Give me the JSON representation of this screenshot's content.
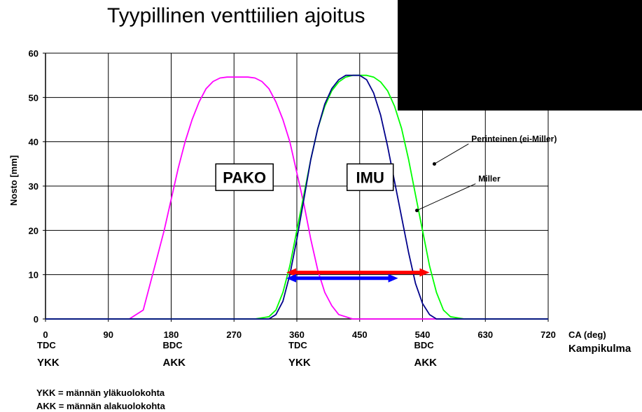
{
  "title": "Tyypillinen venttiilien ajoitus",
  "chart_data": {
    "type": "line",
    "title": "Tyypillinen venttiilien ajoitus",
    "xlabel": "CA (deg)",
    "xlabel2": "Kampikulma",
    "ylabel": "Nosto [mm]",
    "xlim": [
      0,
      720
    ],
    "ylim": [
      0,
      60
    ],
    "xticks": [
      0,
      90,
      180,
      270,
      360,
      450,
      540,
      630,
      720
    ],
    "yticks": [
      0,
      10,
      20,
      30,
      40,
      50,
      60
    ],
    "grid": true,
    "series": [
      {
        "key": "pako",
        "color": "#ff00ff",
        "points": [
          [
            0,
            0
          ],
          [
            120,
            0
          ],
          [
            140,
            2
          ],
          [
            150,
            8
          ],
          [
            160,
            14
          ],
          [
            170,
            20
          ],
          [
            180,
            27
          ],
          [
            190,
            34
          ],
          [
            200,
            40
          ],
          [
            210,
            45
          ],
          [
            220,
            49
          ],
          [
            230,
            52
          ],
          [
            240,
            53.6
          ],
          [
            250,
            54.4
          ],
          [
            260,
            54.6
          ],
          [
            290,
            54.6
          ],
          [
            300,
            54.4
          ],
          [
            310,
            53.6
          ],
          [
            320,
            52
          ],
          [
            330,
            49
          ],
          [
            340,
            45
          ],
          [
            350,
            40
          ],
          [
            360,
            33
          ],
          [
            370,
            26
          ],
          [
            380,
            18
          ],
          [
            390,
            11
          ],
          [
            400,
            6
          ],
          [
            410,
            3
          ],
          [
            420,
            1
          ],
          [
            440,
            0
          ],
          [
            720,
            0
          ]
        ]
      },
      {
        "key": "perinteinen",
        "color": "#00ff00",
        "points": [
          [
            0,
            0
          ],
          [
            300,
            0
          ],
          [
            320,
            0.5
          ],
          [
            330,
            2
          ],
          [
            340,
            6
          ],
          [
            350,
            12
          ],
          [
            360,
            20
          ],
          [
            370,
            28
          ],
          [
            380,
            36
          ],
          [
            390,
            43
          ],
          [
            400,
            48
          ],
          [
            410,
            51.5
          ],
          [
            420,
            53.5
          ],
          [
            430,
            54.6
          ],
          [
            440,
            55
          ],
          [
            460,
            55
          ],
          [
            470,
            54.6
          ],
          [
            480,
            53.5
          ],
          [
            490,
            51.5
          ],
          [
            500,
            48
          ],
          [
            510,
            43
          ],
          [
            520,
            36
          ],
          [
            530,
            28
          ],
          [
            540,
            20
          ],
          [
            550,
            12
          ],
          [
            560,
            6
          ],
          [
            570,
            2
          ],
          [
            580,
            0.5
          ],
          [
            600,
            0
          ],
          [
            720,
            0
          ]
        ]
      },
      {
        "key": "miller",
        "color": "#00008b",
        "points": [
          [
            0,
            0
          ],
          [
            320,
            0
          ],
          [
            330,
            1
          ],
          [
            340,
            4
          ],
          [
            350,
            10
          ],
          [
            360,
            18
          ],
          [
            370,
            27
          ],
          [
            380,
            36
          ],
          [
            390,
            43
          ],
          [
            400,
            48.5
          ],
          [
            410,
            52
          ],
          [
            420,
            54
          ],
          [
            430,
            55
          ],
          [
            450,
            55
          ],
          [
            460,
            54
          ],
          [
            470,
            51
          ],
          [
            480,
            46
          ],
          [
            490,
            39
          ],
          [
            500,
            31
          ],
          [
            510,
            23
          ],
          [
            520,
            15
          ],
          [
            530,
            8
          ],
          [
            540,
            3.5
          ],
          [
            550,
            1
          ],
          [
            560,
            0
          ],
          [
            720,
            0
          ]
        ]
      }
    ],
    "annotations": {
      "boxes": [
        {
          "key": "pako_box",
          "text": "PAKO",
          "x": 285,
          "y": 32
        },
        {
          "key": "imu_box",
          "text": "IMU",
          "x": 465,
          "y": 32
        }
      ],
      "arrows": [
        {
          "key": "red_arrow",
          "color": "#ff0000",
          "from": 345,
          "to": 550,
          "y": 10.5
        },
        {
          "key": "blue_arrow",
          "color": "#0000ff",
          "from": 345,
          "to": 505,
          "y": 9.2
        }
      ],
      "callouts": [
        {
          "key": "perinteinen_callout",
          "text": "Perinteinen (ei-Miller)",
          "point": [
            557,
            35
          ],
          "text_at": [
            610,
            40
          ]
        },
        {
          "key": "miller_callout",
          "text": "Miller",
          "point": [
            532,
            24.5
          ],
          "text_at": [
            620,
            31
          ]
        }
      ]
    }
  },
  "position_labels": [
    {
      "key": "p0",
      "abbr": "TDC",
      "fin": "YKK",
      "x": 0
    },
    {
      "key": "p180",
      "abbr": "BDC",
      "fin": "AKK",
      "x": 180
    },
    {
      "key": "p360",
      "abbr": "TDC",
      "fin": "YKK",
      "x": 360
    },
    {
      "key": "p540",
      "abbr": "BDC",
      "fin": "AKK",
      "x": 540
    }
  ],
  "legend_notes": [
    "YKK = männän yläkuolokohta",
    "AKK = männän alakuolokohta"
  ],
  "redaction_color": "#000000"
}
